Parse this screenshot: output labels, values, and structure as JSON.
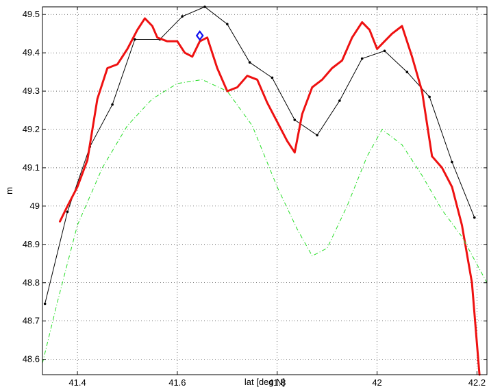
{
  "chart_data": {
    "type": "line",
    "title": "",
    "xlabel": "lat [deg N]",
    "ylabel": "m",
    "xlim": [
      41.33,
      42.22
    ],
    "ylim": [
      48.56,
      49.52
    ],
    "grid": true,
    "x_ticks": [
      "41.4",
      "41.6",
      "41.8",
      "42",
      "42.2"
    ],
    "x_tick_values": [
      41.4,
      41.6,
      41.8,
      42.0,
      42.2
    ],
    "y_ticks": [
      "48.6",
      "48.7",
      "48.8",
      "48.9",
      "49",
      "49.1",
      "49.2",
      "49.3",
      "49.4",
      "49.5"
    ],
    "y_tick_values": [
      48.6,
      48.7,
      48.8,
      48.9,
      49.0,
      49.1,
      49.2,
      49.3,
      49.4,
      49.5
    ],
    "series": [
      {
        "style": "black-dots",
        "color": "#000000",
        "x": [
          41.335,
          41.38,
          41.425,
          41.47,
          41.515,
          41.565,
          41.61,
          41.655,
          41.7,
          41.745,
          41.79,
          41.835,
          41.88,
          41.925,
          41.97,
          42.015,
          42.06,
          42.105,
          42.15,
          42.195
        ],
        "y": [
          48.745,
          48.985,
          49.155,
          49.265,
          49.435,
          49.435,
          49.495,
          49.52,
          49.475,
          49.375,
          49.335,
          49.225,
          49.185,
          49.275,
          49.385,
          49.405,
          49.35,
          49.285,
          49.115,
          48.97
        ]
      },
      {
        "style": "red-thick",
        "color": "#ee1111",
        "x": [
          41.365,
          41.38,
          41.4,
          41.42,
          41.44,
          41.46,
          41.48,
          41.5,
          41.52,
          41.535,
          41.55,
          41.56,
          41.58,
          41.6,
          41.615,
          41.63,
          41.645,
          41.66,
          41.68,
          41.7,
          41.72,
          41.74,
          41.76,
          41.78,
          41.8,
          41.82,
          41.835,
          41.85,
          41.87,
          41.89,
          41.91,
          41.93,
          41.95,
          41.97,
          41.985,
          42.0,
          42.015,
          42.03,
          42.05,
          42.07,
          42.09,
          42.11,
          42.13,
          42.15,
          42.17,
          42.19,
          42.205
        ],
        "y": [
          48.96,
          49.0,
          49.05,
          49.12,
          49.28,
          49.36,
          49.37,
          49.41,
          49.46,
          49.49,
          49.47,
          49.44,
          49.43,
          49.43,
          49.4,
          49.39,
          49.43,
          49.44,
          49.36,
          49.3,
          49.31,
          49.34,
          49.33,
          49.27,
          49.22,
          49.17,
          49.14,
          49.24,
          49.31,
          49.33,
          49.36,
          49.38,
          49.44,
          49.48,
          49.46,
          49.41,
          49.43,
          49.45,
          49.47,
          49.39,
          49.3,
          49.13,
          49.1,
          49.05,
          48.95,
          48.8,
          48.56
        ]
      },
      {
        "style": "green-dashdot",
        "color": "#22dd22",
        "x": [
          41.33,
          41.36,
          41.4,
          41.45,
          41.5,
          41.55,
          41.6,
          41.65,
          41.7,
          41.75,
          41.8,
          41.84,
          41.87,
          41.9,
          41.94,
          41.98,
          42.01,
          42.05,
          42.09,
          42.13,
          42.17,
          42.22
        ],
        "y": [
          48.59,
          48.75,
          48.95,
          49.1,
          49.21,
          49.28,
          49.32,
          49.33,
          49.3,
          49.21,
          49.05,
          48.94,
          48.87,
          48.89,
          49.0,
          49.13,
          49.2,
          49.16,
          49.08,
          48.99,
          48.92,
          48.8
        ]
      },
      {
        "style": "blue-diamond",
        "color": "#1111ee",
        "x": [
          41.645
        ],
        "y": [
          49.445
        ]
      }
    ]
  }
}
